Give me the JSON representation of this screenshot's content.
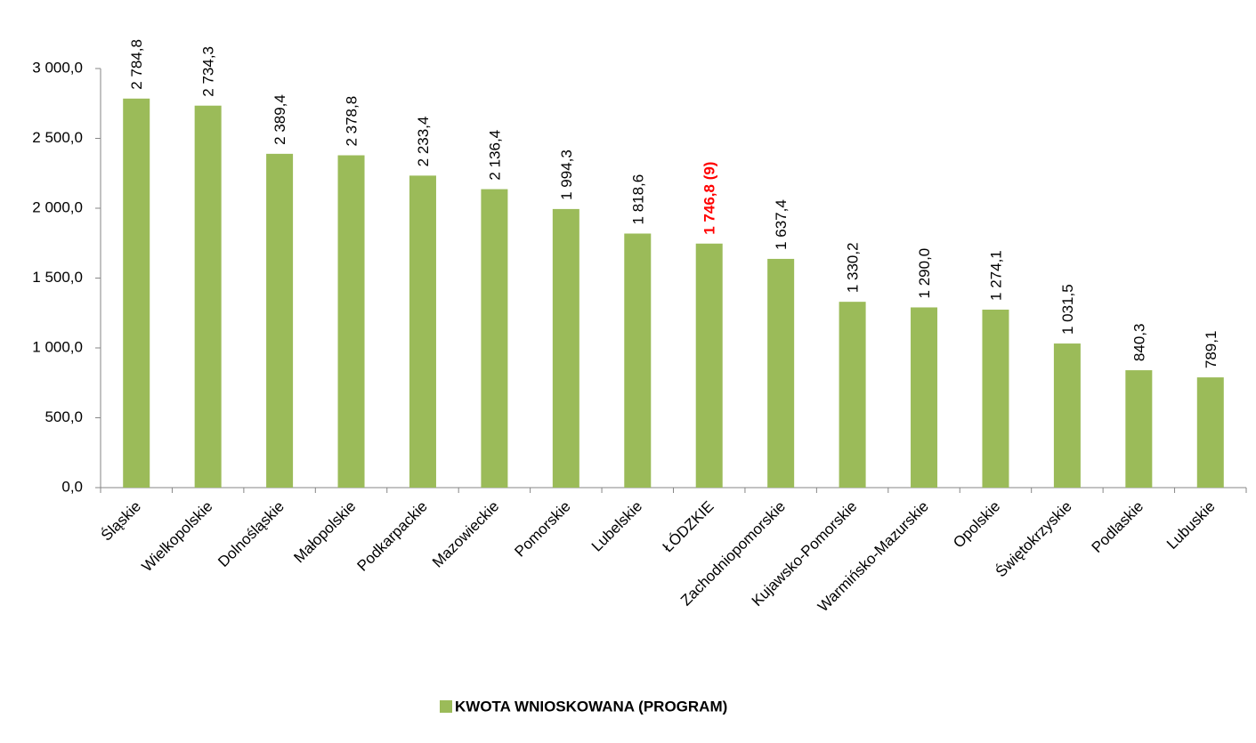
{
  "chart_data": {
    "type": "bar",
    "categories": [
      "Śląskie",
      "Wielkopolskie",
      "Dolnośląskie",
      "Małopolskie",
      "Podkarpackie",
      "Mazowieckie",
      "Pomorskie",
      "Lubelskie",
      "ŁÓDZKIE",
      "Zachodniopomorskie",
      "Kujawsko-Pomorskie",
      "Warmińsko-Mazurskie",
      "Opolskie",
      "Świętokrzyskie",
      "Podlaskie",
      "Lubuskie"
    ],
    "series": [
      {
        "name": "KWOTA WNIOSKOWANA (PROGRAM)",
        "color": "#9bbb59",
        "values": [
          2784.8,
          2734.3,
          2389.4,
          2378.8,
          2233.4,
          2136.4,
          1994.3,
          1818.6,
          1746.8,
          1637.4,
          1330.2,
          1290.0,
          1274.1,
          1031.5,
          840.3,
          789.1
        ],
        "value_labels": [
          "2 784,8",
          "2 734,3",
          "2 389,4",
          "2 378,8",
          "2 233,4",
          "2 136,4",
          "1 994,3",
          "1 818,6",
          "1 746,8 (9)",
          "1 637,4",
          "1 330,2",
          "1 290,0",
          "1 274,1",
          "1 031,5",
          "840,3",
          "789,1"
        ]
      }
    ],
    "highlight_index": 8,
    "highlight_color": "#ff0000",
    "ylim": [
      0,
      3000
    ],
    "yticks": [
      {
        "value": 0,
        "label": "0,0"
      },
      {
        "value": 500,
        "label": "500,0"
      },
      {
        "value": 1000,
        "label": "1 000,0"
      },
      {
        "value": 1500,
        "label": "1 500,0"
      },
      {
        "value": 2000,
        "label": "2 000,0"
      },
      {
        "value": 2500,
        "label": "2 500,0"
      },
      {
        "value": 3000,
        "label": "3 000,0"
      }
    ],
    "grid": false,
    "legend": "bottom"
  }
}
